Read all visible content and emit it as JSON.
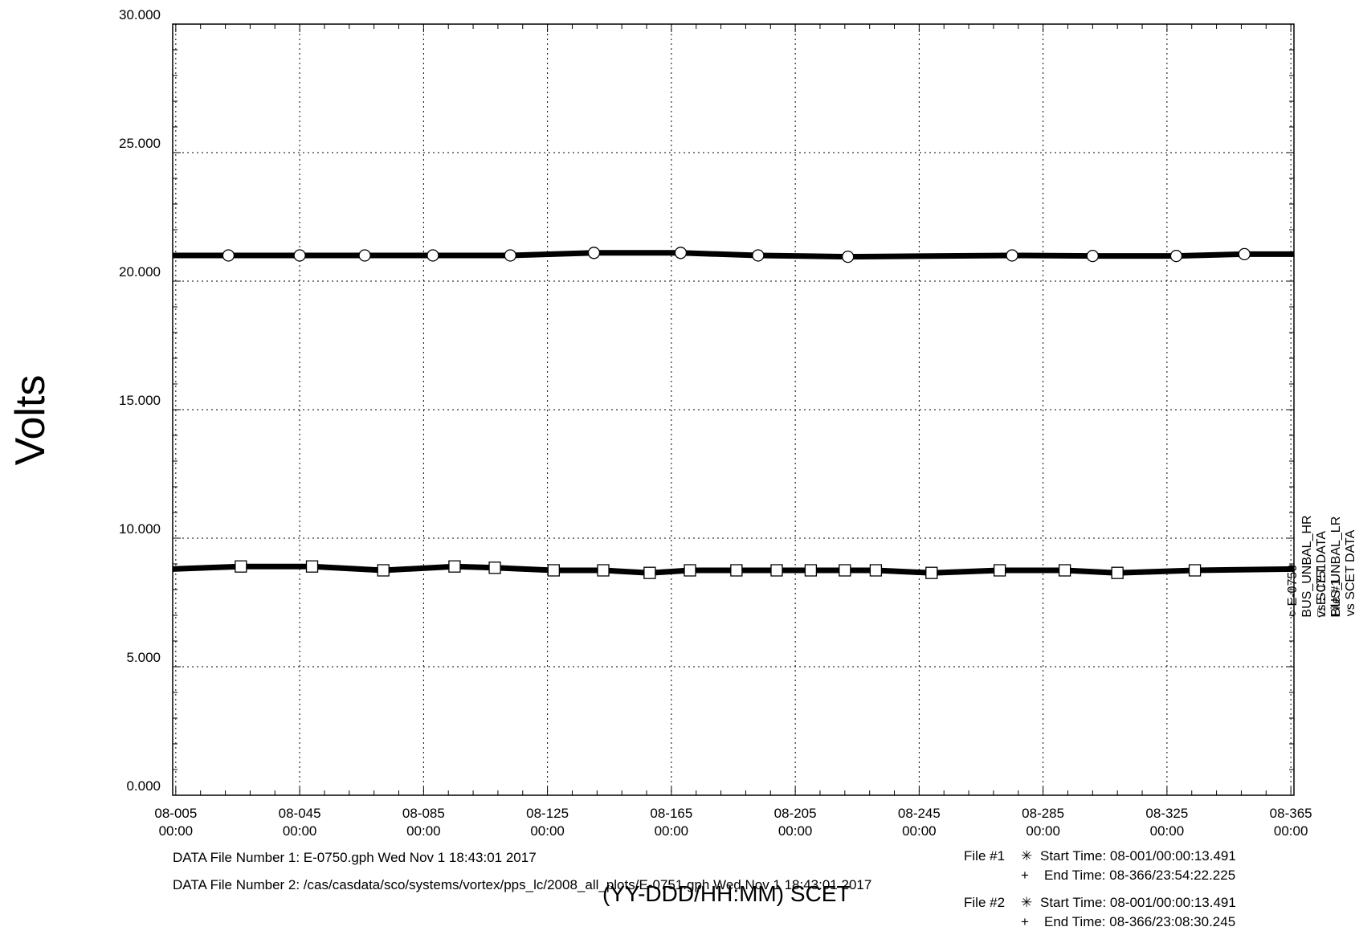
{
  "chart_data": {
    "type": "line",
    "title": "",
    "xlabel": "(YY-DDD/HH:MM) SCET",
    "ylabel": "Volts",
    "ylim": [
      0,
      30
    ],
    "xlim_days": [
      4,
      366
    ],
    "y_ticks": [
      "0.000",
      "5.000",
      "10.000",
      "15.000",
      "20.000",
      "25.000",
      "30.000"
    ],
    "x_ticks": [
      {
        "line1": "08-005",
        "line2": "00:00"
      },
      {
        "line1": "08-045",
        "line2": "00:00"
      },
      {
        "line1": "08-085",
        "line2": "00:00"
      },
      {
        "line1": "08-125",
        "line2": "00:00"
      },
      {
        "line1": "08-165",
        "line2": "00:00"
      },
      {
        "line1": "08-205",
        "line2": "00:00"
      },
      {
        "line1": "08-245",
        "line2": "00:00"
      },
      {
        "line1": "08-285",
        "line2": "00:00"
      },
      {
        "line1": "08-325",
        "line2": "00:00"
      },
      {
        "line1": "08-365",
        "line2": "00:00"
      }
    ],
    "grid": true,
    "legend_placement": "right, vertical",
    "series": [
      {
        "name": "E-0750  BUS_UNBAL_HR  vs  SCET  DATA File #1",
        "marker": "circle",
        "x_days": [
          4,
          22,
          45,
          66,
          88,
          113,
          140,
          168,
          193,
          222,
          275,
          301,
          328,
          350,
          366
        ],
        "y": [
          21.0,
          21.0,
          21.0,
          21.0,
          21.0,
          21.0,
          21.1,
          21.1,
          21.0,
          20.95,
          21.0,
          20.98,
          20.98,
          21.05,
          21.05
        ]
      },
      {
        "name": "E-0751  BUS_UNBAL_LR  vs  SCET  DATA File #2",
        "marker": "square",
        "x_days": [
          4,
          26,
          49,
          72,
          95,
          108,
          127,
          143,
          158,
          171,
          186,
          199,
          210,
          221,
          231,
          249,
          271,
          292,
          309,
          334,
          366
        ],
        "y": [
          8.8,
          8.9,
          8.9,
          8.75,
          8.9,
          8.85,
          8.75,
          8.75,
          8.65,
          8.75,
          8.75,
          8.75,
          8.75,
          8.75,
          8.75,
          8.65,
          8.75,
          8.75,
          8.65,
          8.75,
          8.8
        ]
      }
    ]
  },
  "footer": {
    "data_file_1": "DATA File Number 1: E-0750.gph  Wed Nov  1 18:43:01 2017",
    "data_file_2": "DATA File Number 2: /cas/casdata/sco/systems/vortex/pps_lc/2008_all_plots/E-0751.gph  Wed Nov  1 18:43:01 2017"
  },
  "file_info": [
    {
      "label": "File #1",
      "start_symbol": "✳",
      "start": "Start Time: 08-001/00:00:13.491",
      "end_symbol": "+",
      "end": "End Time: 08-366/23:54:22.225"
    },
    {
      "label": "File #2",
      "start_symbol": "✳",
      "start": "Start Time: 08-001/00:00:13.491",
      "end_symbol": "+",
      "end": "End Time: 08-366/23:08:30.245"
    }
  ],
  "legend": {
    "circle_symbol": "○",
    "square_symbol": "□"
  }
}
